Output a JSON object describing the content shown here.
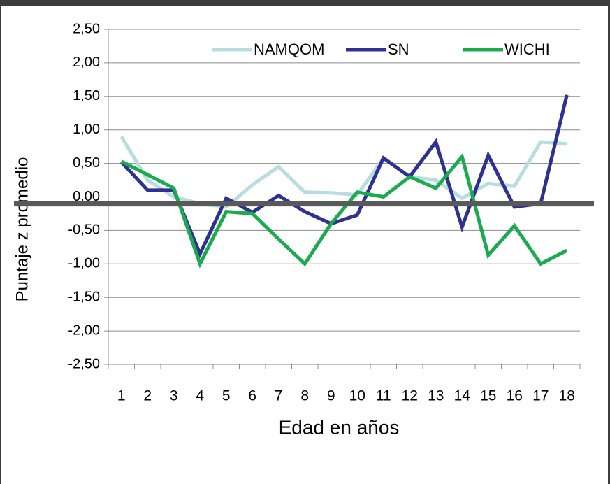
{
  "chart_data": {
    "type": "line",
    "x_label": "Edad en años",
    "y_label": "Puntaje z promedio",
    "categories": [
      "1",
      "2",
      "3",
      "4",
      "5",
      "6",
      "7",
      "8",
      "9",
      "10",
      "11",
      "12",
      "13",
      "14",
      "15",
      "16",
      "17",
      "18"
    ],
    "series": [
      {
        "name": "NAMQOM",
        "color": "#b7dde0",
        "values": [
          0.9,
          0.25,
          0.0,
          -0.1,
          -0.15,
          0.18,
          0.45,
          0.07,
          0.06,
          0.03,
          0.58,
          0.3,
          0.25,
          -0.02,
          0.2,
          0.16,
          0.82,
          0.79
        ]
      },
      {
        "name": "SN",
        "color": "#2e3192",
        "values": [
          0.52,
          0.1,
          0.1,
          -0.85,
          -0.02,
          -0.23,
          0.02,
          -0.22,
          -0.4,
          -0.27,
          0.58,
          0.3,
          0.82,
          -0.45,
          0.62,
          -0.15,
          -0.1,
          1.52
        ]
      },
      {
        "name": "WICHI",
        "color": "#1aab4f",
        "values": [
          0.53,
          0.33,
          0.13,
          -1.0,
          -0.22,
          -0.25,
          -0.63,
          -1.0,
          -0.4,
          0.07,
          0.0,
          0.3,
          0.13,
          0.6,
          -0.87,
          -0.43,
          -1.0,
          -0.8
        ]
      }
    ],
    "reference_line": {
      "value": -0.1,
      "color": "#595959"
    },
    "ylim": [
      -2.5,
      2.5
    ],
    "yticks": [
      {
        "value": -2.5,
        "label": "-2,50"
      },
      {
        "value": -2,
        "label": "-2,00"
      },
      {
        "value": -1.5,
        "label": "-1,50"
      },
      {
        "value": -1,
        "label": "-1,00"
      },
      {
        "value": -0.5,
        "label": "-0,50"
      },
      {
        "value": 0,
        "label": "0,00"
      },
      {
        "value": 0.5,
        "label": "0,50"
      },
      {
        "value": 1,
        "label": "1,00"
      },
      {
        "value": 1.5,
        "label": "1,50"
      },
      {
        "value": 2,
        "label": "2,00"
      },
      {
        "value": 2.5,
        "label": "2,50"
      }
    ],
    "grid": true,
    "legend": "top-right"
  }
}
